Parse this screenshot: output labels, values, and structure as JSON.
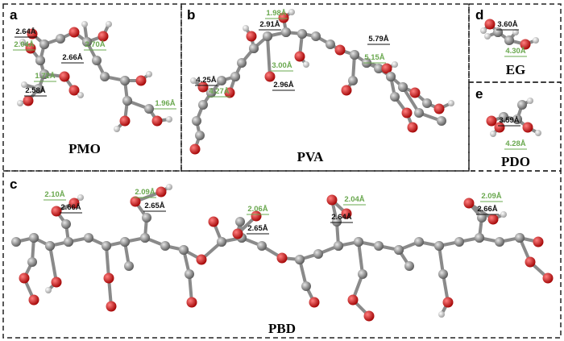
{
  "panels": [
    {
      "letter": "a",
      "name": "PMO",
      "distances": [
        {
          "text": "2.64Å",
          "color": "#111111"
        },
        {
          "text": "2.04Å",
          "color": "#6aa84f"
        },
        {
          "text": "2.66Å",
          "color": "#111111"
        },
        {
          "text": "2.70Å",
          "color": "#6aa84f"
        },
        {
          "text": "1.72Å",
          "color": "#6aa84f"
        },
        {
          "text": "2.58Å",
          "color": "#111111"
        },
        {
          "text": "1.96Å",
          "color": "#6aa84f"
        }
      ]
    },
    {
      "letter": "b",
      "name": "PVA",
      "distances": [
        {
          "text": "1.98Å",
          "color": "#6aa84f"
        },
        {
          "text": "2.91Å",
          "color": "#111111"
        },
        {
          "text": "5.79Å",
          "color": "#111111"
        },
        {
          "text": "5.15Å",
          "color": "#6aa84f"
        },
        {
          "text": "4.25Å",
          "color": "#111111"
        },
        {
          "text": "4.27Å",
          "color": "#6aa84f"
        },
        {
          "text": "3.00Å",
          "color": "#6aa84f"
        },
        {
          "text": "2.96Å",
          "color": "#111111"
        }
      ]
    },
    {
      "letter": "c",
      "name": "PBD",
      "distances": [
        {
          "text": "2.10Å",
          "color": "#6aa84f"
        },
        {
          "text": "2.66Å",
          "color": "#111111"
        },
        {
          "text": "2.09Å",
          "color": "#6aa84f"
        },
        {
          "text": "2.65Å",
          "color": "#111111"
        },
        {
          "text": "2.06Å",
          "color": "#6aa84f"
        },
        {
          "text": "2.65Å",
          "color": "#111111"
        },
        {
          "text": "2.04Å",
          "color": "#6aa84f"
        },
        {
          "text": "2.64Å",
          "color": "#111111"
        },
        {
          "text": "2.09Å",
          "color": "#6aa84f"
        },
        {
          "text": "2.66Å",
          "color": "#111111"
        }
      ]
    },
    {
      "letter": "d",
      "name": "EG",
      "distances": [
        {
          "text": "3.60Å",
          "color": "#111111"
        },
        {
          "text": "4.30Å",
          "color": "#6aa84f"
        }
      ]
    },
    {
      "letter": "e",
      "name": "PDO",
      "distances": [
        {
          "text": "3.59Å",
          "color": "#111111"
        },
        {
          "text": "4.28Å",
          "color": "#6aa84f"
        }
      ]
    }
  ]
}
